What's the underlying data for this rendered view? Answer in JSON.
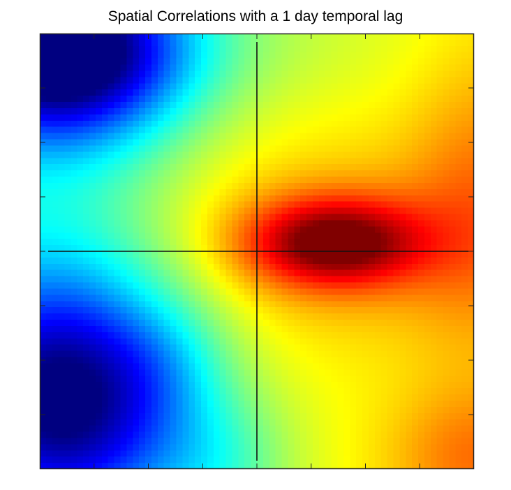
{
  "chart_data": {
    "type": "heatmap",
    "title": "Spatial Correlations with a 1 day temporal lag",
    "xlabel": "",
    "ylabel": "",
    "grid": false,
    "legend": "none",
    "colormap": "jet",
    "value_range": [
      0,
      1
    ],
    "grid_size": [
      70,
      70
    ],
    "crosshair": {
      "x": 0.5,
      "y": 0.5
    },
    "num_ticks": 7,
    "features": [
      {
        "name": "base",
        "value": 0.62
      },
      {
        "name": "top-left-low",
        "cx": 0.05,
        "cy": 0.04,
        "sx": 0.2,
        "sy": 0.14,
        "amp": -0.64
      },
      {
        "name": "bottom-left-low",
        "cx": 0.06,
        "cy": 0.85,
        "sx": 0.2,
        "sy": 0.2,
        "amp": -0.52
      },
      {
        "name": "left-band-low",
        "cx": 0.0,
        "cy": 0.5,
        "sx": 0.25,
        "sy": 0.55,
        "amp": -0.18
      },
      {
        "name": "center-peak",
        "cx": 0.68,
        "cy": 0.48,
        "sx": 0.14,
        "sy": 0.07,
        "amp": 0.36
      },
      {
        "name": "center-broad",
        "cx": 0.66,
        "cy": 0.48,
        "sx": 0.32,
        "sy": 0.16,
        "amp": 0.1
      },
      {
        "name": "right-edge-high",
        "cx": 1.02,
        "cy": 0.38,
        "sx": 0.12,
        "sy": 0.25,
        "amp": 0.12
      },
      {
        "name": "bottom-right-high",
        "cx": 1.0,
        "cy": 0.98,
        "sx": 0.14,
        "sy": 0.12,
        "amp": 0.14
      },
      {
        "name": "top-center-mid",
        "cx": 0.45,
        "cy": 0.0,
        "sx": 0.3,
        "sy": 0.12,
        "amp": -0.05
      },
      {
        "name": "bottom-center-low",
        "cx": 0.42,
        "cy": 1.0,
        "sx": 0.12,
        "sy": 0.12,
        "amp": -0.12
      },
      {
        "name": "lower-left-channel",
        "cx": 0.3,
        "cy": 0.75,
        "sx": 0.1,
        "sy": 0.1,
        "amp": -0.06
      }
    ]
  }
}
